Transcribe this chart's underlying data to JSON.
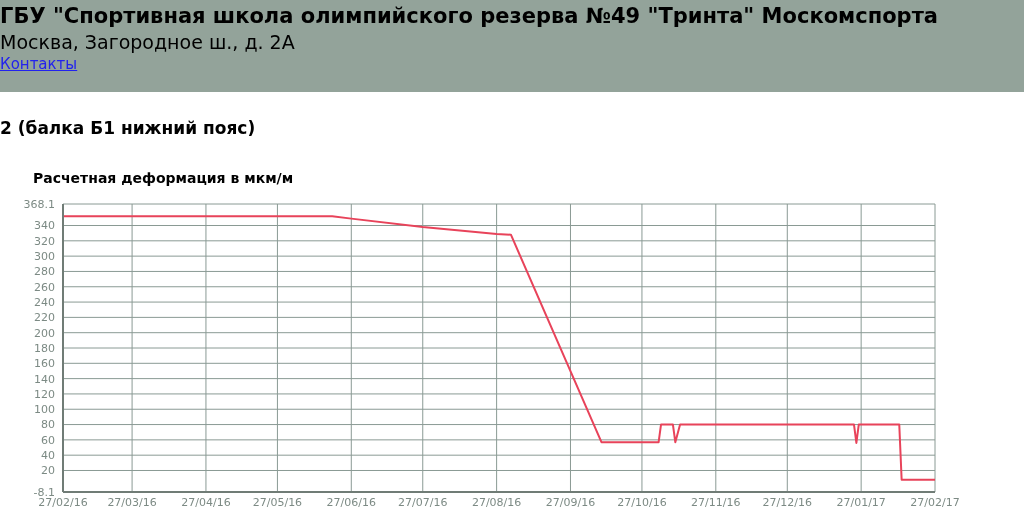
{
  "chart_data": {
    "type": "line",
    "title": "Расчетная деформация в мкм/м",
    "subtitle": "2 (балка Б1 нижний пояс)",
    "annotations": [
      "ГБУ \"Спортивная школа олимпийского резерва №49 \"Тринта\" Москомспорта",
      "Москва, Загородное ш., д. 2А",
      "Контакты"
    ],
    "x": [
      "2016-02-27",
      "2016-06-19",
      "2016-06-27",
      "2016-07-27",
      "2016-08-27",
      "2016-09-02",
      "2016-10-10",
      "2016-11-03",
      "2016-11-04",
      "2016-11-09",
      "2016-11-10",
      "2016-11-12",
      "2017-01-24",
      "2017-01-25",
      "2017-01-26",
      "2017-02-12",
      "2017-02-13",
      "2017-02-27"
    ],
    "series": [
      {
        "color": "#e8435a",
        "values": [
          352,
          352,
          349,
          338,
          329,
          328,
          57,
          57,
          80,
          80,
          57,
          80,
          80,
          56,
          80,
          80,
          8,
          8
        ]
      }
    ],
    "xlim": [
      "2016-02-27",
      "2017-02-27"
    ],
    "xticks": [
      {
        "value": "2016-02-27",
        "label": "27/02/16"
      },
      {
        "value": "2016-03-27",
        "label": "27/03/16"
      },
      {
        "value": "2016-04-27",
        "label": "27/04/16"
      },
      {
        "value": "2016-05-27",
        "label": "27/05/16"
      },
      {
        "value": "2016-06-27",
        "label": "27/06/16"
      },
      {
        "value": "2016-07-27",
        "label": "27/07/16"
      },
      {
        "value": "2016-08-27",
        "label": "27/08/16"
      },
      {
        "value": "2016-09-27",
        "label": "27/09/16"
      },
      {
        "value": "2016-10-27",
        "label": "27/10/16"
      },
      {
        "value": "2016-11-27",
        "label": "27/11/16"
      },
      {
        "value": "2016-12-27",
        "label": "27/12/16"
      },
      {
        "value": "2017-01-27",
        "label": "27/01/17"
      },
      {
        "value": "2017-02-27",
        "label": "27/02/17"
      }
    ],
    "ylim": [
      -8.1,
      368.1
    ],
    "yticks": [
      -8.1,
      20,
      40,
      60,
      80,
      100,
      120,
      140,
      160,
      180,
      200,
      220,
      240,
      260,
      280,
      300,
      320,
      340,
      368.1
    ],
    "grid": true,
    "legend": false,
    "marker": "none",
    "line_style": "solid"
  }
}
